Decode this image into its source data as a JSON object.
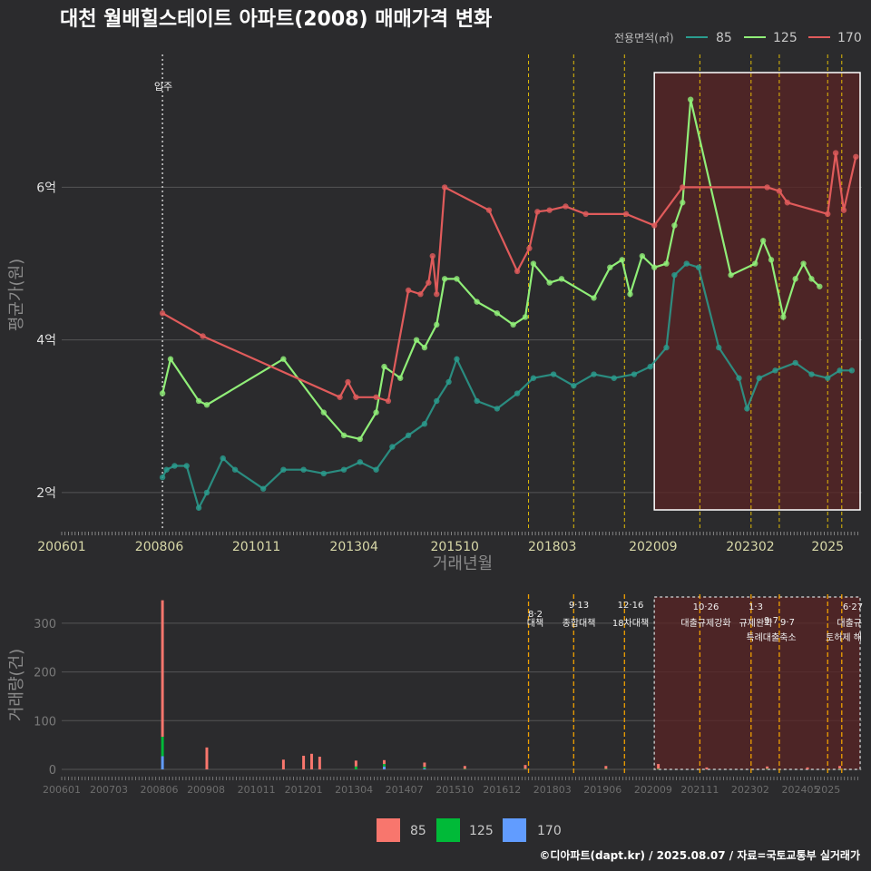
{
  "title": "대천 월배힐스테이트 아파트(2008) 매매가격 변화",
  "footer": "©디아파트(dapt.kr) / 2025.08.07 / 자료=국토교통부 실거래가",
  "colors": {
    "s85": "#2a9d8f",
    "s125": "#90ee78",
    "s170": "#e05b5b",
    "bar85": "#f8766d",
    "bar125": "#00ba38",
    "bar170": "#619cff",
    "policy": "#ffd500",
    "highlight": "#5a2424"
  },
  "chart_data": [
    {
      "type": "line",
      "title": "대천 월배힐스테이트 아파트(2008) 매매가격 변화",
      "xlabel": "거래년월",
      "ylabel": "평균가(원)",
      "x_tick_labels": [
        "200601",
        "200806",
        "201011",
        "201304",
        "201510",
        "201803",
        "202009",
        "202302",
        "2025"
      ],
      "y_tick_labels": [
        "2억",
        "4억",
        "6억"
      ],
      "ylim": [
        1.5,
        7.8
      ],
      "legend_title": "전용면적(㎡)",
      "move_in_label": "입주",
      "move_in_x": 2008.5,
      "policy_lines_x": [
        2017.58,
        2018.7,
        2019.96,
        2021.83,
        2023.1,
        2023.8,
        2025.0,
        2025.35
      ],
      "highlight_range_x": [
        2020.7,
        2025.9
      ],
      "series": [
        {
          "name": "85",
          "points": [
            [
              2008.5,
              2.2
            ],
            [
              2008.6,
              2.3
            ],
            [
              2008.8,
              2.35
            ],
            [
              2009.1,
              2.35
            ],
            [
              2009.4,
              1.8
            ],
            [
              2009.6,
              2.0
            ],
            [
              2010.0,
              2.45
            ],
            [
              2010.3,
              2.3
            ],
            [
              2011.0,
              2.05
            ],
            [
              2011.5,
              2.3
            ],
            [
              2012.0,
              2.3
            ],
            [
              2012.5,
              2.25
            ],
            [
              2013.0,
              2.3
            ],
            [
              2013.4,
              2.4
            ],
            [
              2013.8,
              2.3
            ],
            [
              2014.2,
              2.6
            ],
            [
              2014.6,
              2.75
            ],
            [
              2015.0,
              2.9
            ],
            [
              2015.3,
              3.2
            ],
            [
              2015.6,
              3.45
            ],
            [
              2015.8,
              3.75
            ],
            [
              2016.3,
              3.2
            ],
            [
              2016.8,
              3.1
            ],
            [
              2017.3,
              3.3
            ],
            [
              2017.7,
              3.5
            ],
            [
              2018.2,
              3.55
            ],
            [
              2018.7,
              3.4
            ],
            [
              2019.2,
              3.55
            ],
            [
              2019.7,
              3.5
            ],
            [
              2020.2,
              3.55
            ],
            [
              2020.6,
              3.65
            ],
            [
              2021.0,
              3.9
            ],
            [
              2021.2,
              4.85
            ],
            [
              2021.5,
              5.0
            ],
            [
              2021.8,
              4.95
            ],
            [
              2022.3,
              3.9
            ],
            [
              2022.8,
              3.5
            ],
            [
              2023.0,
              3.1
            ],
            [
              2023.3,
              3.5
            ],
            [
              2023.7,
              3.6
            ],
            [
              2024.2,
              3.7
            ],
            [
              2024.6,
              3.55
            ],
            [
              2025.0,
              3.5
            ],
            [
              2025.3,
              3.6
            ],
            [
              2025.6,
              3.6
            ]
          ]
        },
        {
          "name": "125",
          "points": [
            [
              2008.5,
              3.3
            ],
            [
              2008.7,
              3.75
            ],
            [
              2009.4,
              3.2
            ],
            [
              2009.6,
              3.15
            ],
            [
              2011.5,
              3.75
            ],
            [
              2012.5,
              3.05
            ],
            [
              2013.0,
              2.75
            ],
            [
              2013.4,
              2.7
            ],
            [
              2013.8,
              3.05
            ],
            [
              2014.0,
              3.65
            ],
            [
              2014.4,
              3.5
            ],
            [
              2014.8,
              4.0
            ],
            [
              2015.0,
              3.9
            ],
            [
              2015.3,
              4.2
            ],
            [
              2015.5,
              4.8
            ],
            [
              2015.8,
              4.8
            ],
            [
              2016.3,
              4.5
            ],
            [
              2016.8,
              4.35
            ],
            [
              2017.2,
              4.2
            ],
            [
              2017.5,
              4.3
            ],
            [
              2017.7,
              5.0
            ],
            [
              2018.1,
              4.75
            ],
            [
              2018.4,
              4.8
            ],
            [
              2019.2,
              4.55
            ],
            [
              2019.6,
              4.95
            ],
            [
              2019.9,
              5.05
            ],
            [
              2020.1,
              4.6
            ],
            [
              2020.4,
              5.1
            ],
            [
              2020.7,
              4.95
            ],
            [
              2021.0,
              5.0
            ],
            [
              2021.2,
              5.5
            ],
            [
              2021.4,
              5.8
            ],
            [
              2021.6,
              7.15
            ],
            [
              2022.6,
              4.85
            ],
            [
              2023.2,
              5.0
            ],
            [
              2023.4,
              5.3
            ],
            [
              2023.6,
              5.05
            ],
            [
              2023.9,
              4.3
            ],
            [
              2024.2,
              4.8
            ],
            [
              2024.4,
              5.0
            ],
            [
              2024.6,
              4.8
            ],
            [
              2024.8,
              4.7
            ]
          ]
        },
        {
          "name": "170",
          "points": [
            [
              2008.5,
              4.35
            ],
            [
              2009.5,
              4.05
            ],
            [
              2012.9,
              3.25
            ],
            [
              2013.1,
              3.45
            ],
            [
              2013.3,
              3.25
            ],
            [
              2013.8,
              3.25
            ],
            [
              2014.1,
              3.2
            ],
            [
              2014.6,
              4.65
            ],
            [
              2014.9,
              4.6
            ],
            [
              2015.1,
              4.75
            ],
            [
              2015.2,
              5.1
            ],
            [
              2015.3,
              4.6
            ],
            [
              2015.5,
              6.0
            ],
            [
              2016.6,
              5.7
            ],
            [
              2017.3,
              4.9
            ],
            [
              2017.6,
              5.2
            ],
            [
              2017.8,
              5.68
            ],
            [
              2018.1,
              5.7
            ],
            [
              2018.5,
              5.75
            ],
            [
              2019.0,
              5.65
            ],
            [
              2020.0,
              5.65
            ],
            [
              2020.7,
              5.5
            ],
            [
              2021.4,
              6.0
            ],
            [
              2023.5,
              6.0
            ],
            [
              2023.8,
              5.95
            ],
            [
              2024.0,
              5.8
            ],
            [
              2025.0,
              5.65
            ],
            [
              2025.2,
              6.45
            ],
            [
              2025.4,
              5.7
            ],
            [
              2025.7,
              6.4
            ]
          ]
        }
      ]
    },
    {
      "type": "bar",
      "ylabel": "거래량(건)",
      "ylim": [
        0,
        350
      ],
      "y_tick_labels": [
        "0",
        "100",
        "200",
        "300"
      ],
      "x_tick_labels": [
        "200601",
        "200703",
        "200806",
        "200908",
        "201011",
        "201201",
        "201304",
        "201407",
        "201510",
        "201612",
        "201803",
        "201906",
        "202009",
        "202111",
        "202302",
        "202405",
        "2025"
      ],
      "legend": [
        "85",
        "125",
        "170"
      ],
      "annotations": [
        {
          "date": "8·2",
          "label": "대책"
        },
        {
          "date": "9·13",
          "label": "종합대책"
        },
        {
          "date": "12·16",
          "label": "18차대책"
        },
        {
          "date": "10·26",
          "label": "대출규제강화"
        },
        {
          "date": "1·3",
          "label": "규제완화"
        },
        {
          "date": "9·7",
          "label": "특례대출축소"
        },
        {
          "date": "",
          "label": "토허제 해"
        },
        {
          "date": "6·27",
          "label": "대출규"
        }
      ],
      "bars": [
        {
          "x": 2008.5,
          "v85": 280,
          "v125": 40,
          "v170": 27
        },
        {
          "x": 2009.6,
          "v85": 45,
          "v125": 0,
          "v170": 0
        },
        {
          "x": 2011.5,
          "v85": 20,
          "v125": 0,
          "v170": 0
        },
        {
          "x": 2012.0,
          "v85": 28,
          "v125": 0,
          "v170": 0
        },
        {
          "x": 2012.2,
          "v85": 32,
          "v125": 0,
          "v170": 0
        },
        {
          "x": 2012.4,
          "v85": 26,
          "v125": 0,
          "v170": 0
        },
        {
          "x": 2013.3,
          "v85": 12,
          "v125": 6,
          "v170": 0
        },
        {
          "x": 2014.0,
          "v85": 8,
          "v125": 5,
          "v170": 6
        },
        {
          "x": 2015.0,
          "v85": 9,
          "v125": 3,
          "v170": 2
        },
        {
          "x": 2016.0,
          "v85": 6,
          "v125": 1,
          "v170": 0
        },
        {
          "x": 2017.5,
          "v85": 8,
          "v125": 1,
          "v170": 0
        },
        {
          "x": 2019.5,
          "v85": 6,
          "v125": 1,
          "v170": 0
        },
        {
          "x": 2020.8,
          "v85": 10,
          "v125": 1,
          "v170": 0
        },
        {
          "x": 2022.0,
          "v85": 4,
          "v125": 0,
          "v170": 0
        },
        {
          "x": 2023.5,
          "v85": 5,
          "v125": 1,
          "v170": 0
        },
        {
          "x": 2024.5,
          "v85": 4,
          "v125": 0,
          "v170": 0
        },
        {
          "x": 2025.3,
          "v85": 6,
          "v125": 1,
          "v170": 0
        }
      ]
    }
  ]
}
